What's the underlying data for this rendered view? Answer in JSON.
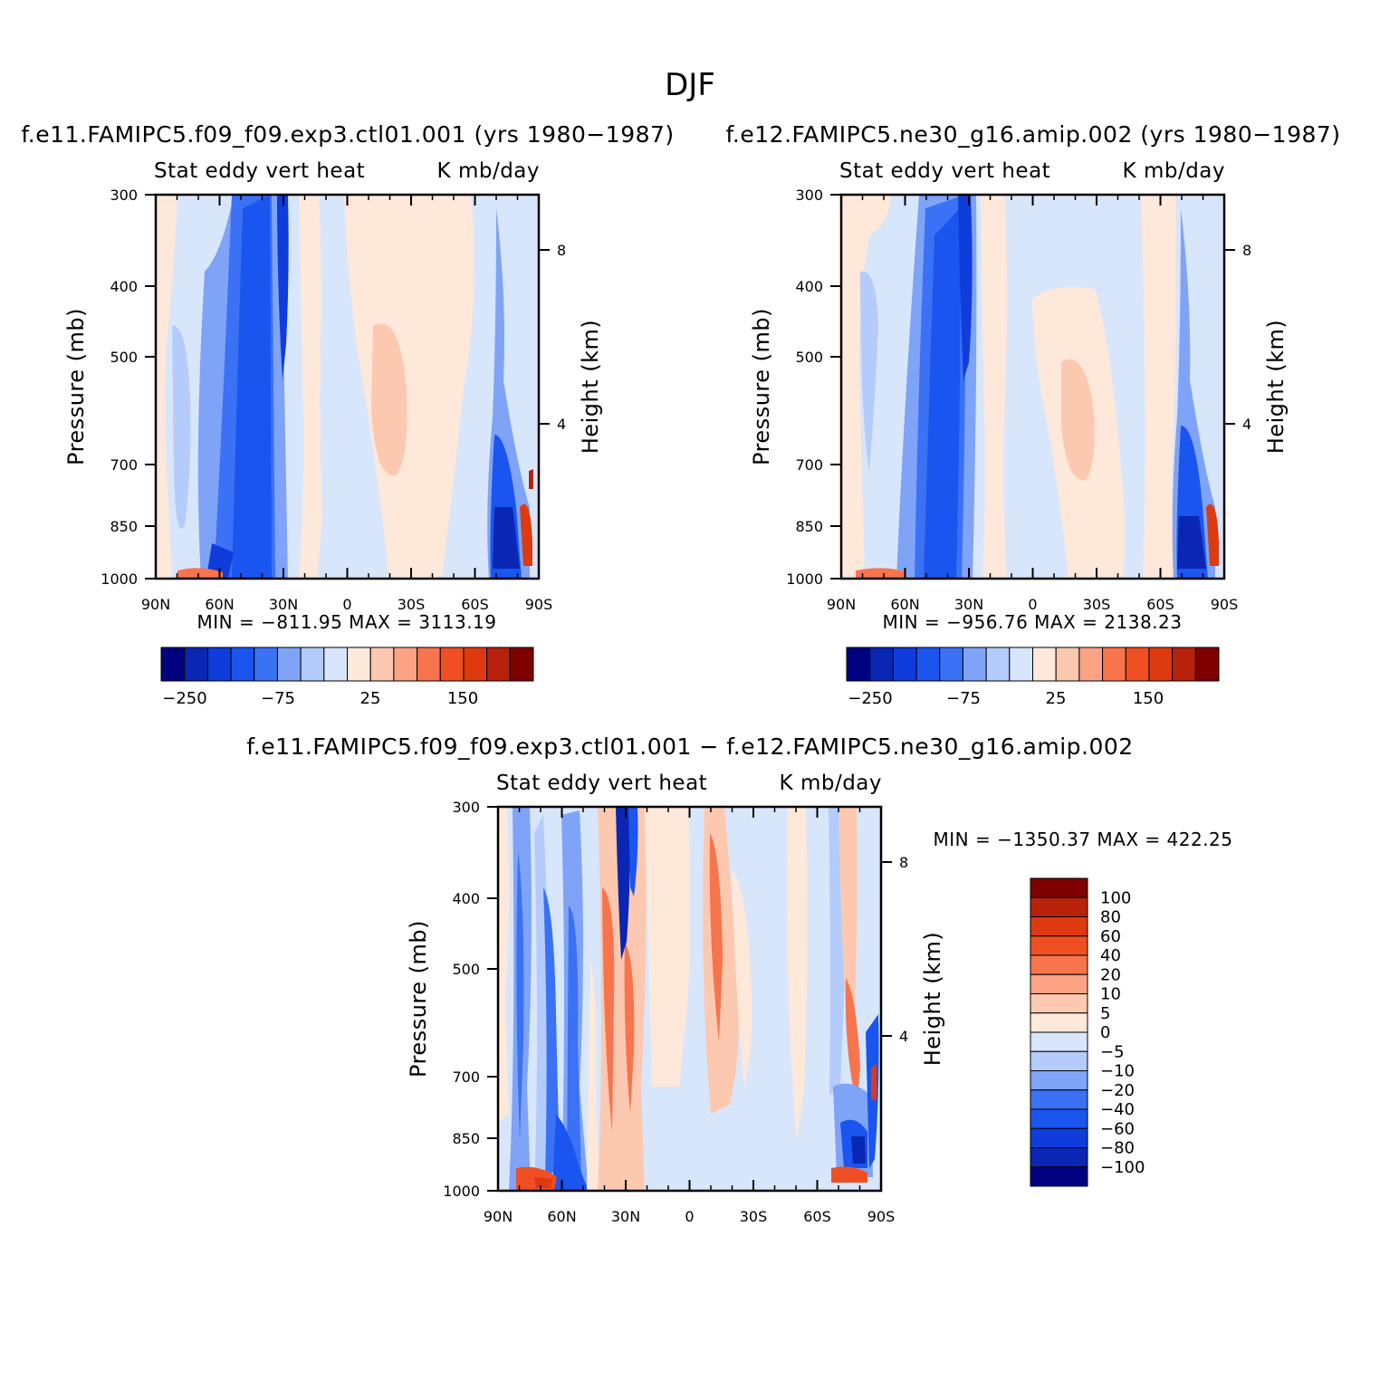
{
  "figure": {
    "suptitle": "DJF"
  },
  "chart_data": [
    {
      "type": "heatmap",
      "title": "f.e11.FAMIPC5.f09_f09.exp3.ctl01.001 (yrs 1980−1987)",
      "left_subtitle": "Stat eddy vert heat",
      "right_subtitle": "K mb/day",
      "ylabel": "Pressure (mb)",
      "ylabel_right": "Height (km)",
      "x_ticks": [
        "90N",
        "60N",
        "30N",
        "0",
        "30S",
        "60S",
        "90S"
      ],
      "y_ticks": [
        "300",
        "400",
        "500",
        "700",
        "850",
        "1000"
      ],
      "y_right_ticks": [
        "8",
        "4"
      ],
      "minmax": "MIN = −811.95   MAX = 3113.19",
      "colorbar_levels": [
        "−250",
        "−200",
        "−150",
        "−100",
        "−75",
        "−50",
        "−25",
        "0",
        "25",
        "50",
        "75",
        "100",
        "150",
        "200",
        "250"
      ],
      "colorbar_labels": [
        "−250",
        "−75",
        "25",
        "150"
      ]
    },
    {
      "type": "heatmap",
      "title": "f.e12.FAMIPC5.ne30_g16.amip.002 (yrs 1980−1987)",
      "left_subtitle": "Stat eddy vert heat",
      "right_subtitle": "K mb/day",
      "ylabel": "Pressure (mb)",
      "ylabel_right": "Height (km)",
      "x_ticks": [
        "90N",
        "60N",
        "30N",
        "0",
        "30S",
        "60S",
        "90S"
      ],
      "y_ticks": [
        "300",
        "400",
        "500",
        "700",
        "850",
        "1000"
      ],
      "y_right_ticks": [
        "8",
        "4"
      ],
      "minmax": "MIN = −956.76   MAX = 2138.23",
      "colorbar_levels": [
        "−250",
        "−200",
        "−150",
        "−100",
        "−75",
        "−50",
        "−25",
        "0",
        "25",
        "50",
        "75",
        "100",
        "150",
        "200",
        "250"
      ],
      "colorbar_labels": [
        "−250",
        "−75",
        "25",
        "150"
      ]
    },
    {
      "type": "heatmap",
      "title": "f.e11.FAMIPC5.f09_f09.exp3.ctl01.001 − f.e12.FAMIPC5.ne30_g16.amip.002",
      "left_subtitle": "Stat eddy vert heat",
      "right_subtitle": "K mb/day",
      "ylabel": "Pressure (mb)",
      "ylabel_right": "Height (km)",
      "x_ticks": [
        "90N",
        "60N",
        "30N",
        "0",
        "30S",
        "60S",
        "90S"
      ],
      "y_ticks": [
        "300",
        "400",
        "500",
        "700",
        "850",
        "1000"
      ],
      "y_right_ticks": [
        "8",
        "4"
      ],
      "minmax": "MIN = −1350.37   MAX = 422.25",
      "colorbar_labels": [
        "100",
        "80",
        "60",
        "40",
        "20",
        "10",
        "5",
        "0",
        "−5",
        "−10",
        "−20",
        "−40",
        "−60",
        "−80",
        "−100"
      ]
    }
  ],
  "palette": [
    "#000080",
    "#0a26b4",
    "#0f3ddc",
    "#1a55f0",
    "#3a71f5",
    "#7fa3f7",
    "#b3ccfb",
    "#d8e6fc",
    "#fde8da",
    "#fcc9b0",
    "#fba383",
    "#f8744d",
    "#ef4f22",
    "#de3a0f",
    "#b8220b",
    "#800000"
  ]
}
